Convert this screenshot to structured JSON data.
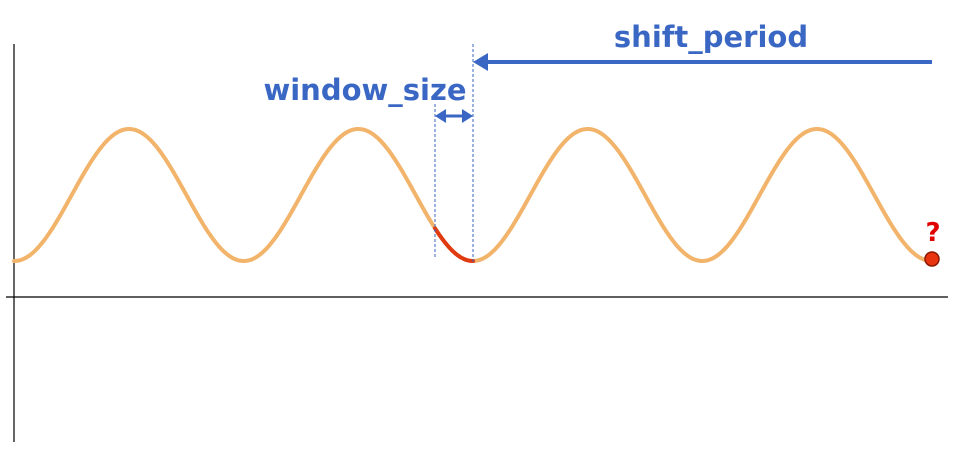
{
  "labels": {
    "shift_period": "shift_period",
    "window_size": "window_size",
    "unknown_marker": "?"
  },
  "colors": {
    "axis": "#000000",
    "wave": "#F2B36A",
    "window_segment": "#E03A10",
    "annotation": "#3A67C4",
    "unknown_point_fill": "#E8340F",
    "unknown_point_stroke": "#8B1A00",
    "question_mark": "#E00000"
  }
}
